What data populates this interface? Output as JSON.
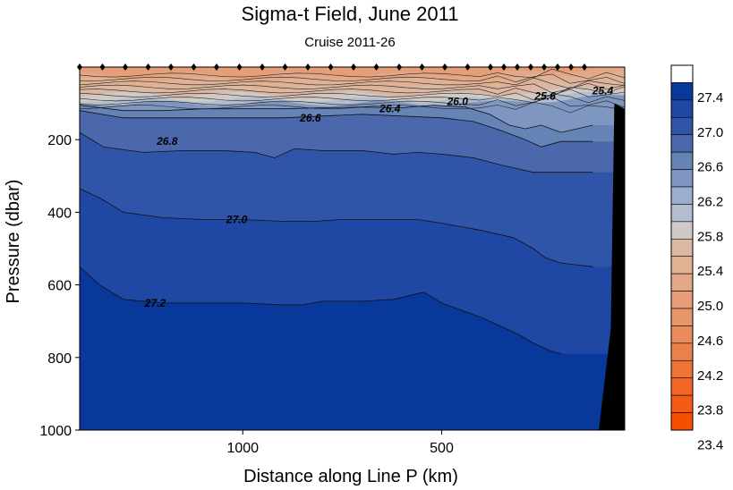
{
  "chart_data": {
    "type": "heatmap",
    "title": "Sigma-t Field,  June 2011",
    "subtitle": "Cruise 2011-26",
    "xlabel": "Distance along Line P  (km)",
    "ylabel": "Pressure  (dbar)",
    "x_ticks": [
      "1000",
      "500"
    ],
    "y_ticks": [
      "200",
      "400",
      "600",
      "800",
      "1000"
    ],
    "xlim": [
      1410,
      40
    ],
    "ylim": [
      0,
      1000
    ],
    "y_inverted": true,
    "colorbar": {
      "levels": [
        27.4,
        27.0,
        26.6,
        26.2,
        25.8,
        25.4,
        25.0,
        24.6,
        24.2,
        23.8,
        23.4
      ],
      "level_labels": [
        "27.4",
        "27.0",
        "26.6",
        "26.2",
        "25.8",
        "25.4",
        "25.0",
        "24.6",
        "24.2",
        "23.8",
        "23.4"
      ],
      "colors": [
        "#ffffff",
        "#08389a",
        "#1e48a4",
        "#3055a8",
        "#4b68ad",
        "#6683b6",
        "#7f97c0",
        "#9aaecf",
        "#b2bdcf",
        "#cfcac6",
        "#dbb8a3",
        "#e0b294",
        "#e3a887",
        "#e59e78",
        "#e7956a",
        "#ea8b5c",
        "#ec804b",
        "#ef7438",
        "#f26626",
        "#f45a12",
        "#f84e00"
      ]
    },
    "contour_labels": [
      {
        "text": "27.2",
        "x": 1220,
        "pressure": 650
      },
      {
        "text": "27.0",
        "x": 1015,
        "pressure": 420
      },
      {
        "text": "26.8",
        "x": 1190,
        "pressure": 205
      },
      {
        "text": "26.6",
        "x": 830,
        "pressure": 140
      },
      {
        "text": "26.4",
        "x": 630,
        "pressure": 115
      },
      {
        "text": "26.0",
        "x": 460,
        "pressure": 95
      },
      {
        "text": "25.6",
        "x": 240,
        "pressure": 80
      },
      {
        "text": "25.4",
        "x": 95,
        "pressure": 65
      }
    ],
    "isopycnals": [
      {
        "level": 27.2,
        "points": [
          [
            1410,
            550
          ],
          [
            1360,
            600
          ],
          [
            1300,
            640
          ],
          [
            1200,
            650
          ],
          [
            1100,
            650
          ],
          [
            1000,
            650
          ],
          [
            900,
            655
          ],
          [
            850,
            655
          ],
          [
            800,
            645
          ],
          [
            700,
            645
          ],
          [
            620,
            640
          ],
          [
            545,
            620
          ],
          [
            500,
            650
          ],
          [
            400,
            690
          ],
          [
            310,
            735
          ],
          [
            270,
            760
          ],
          [
            230,
            780
          ],
          [
            200,
            790
          ]
        ]
      },
      {
        "level": 27.0,
        "points": [
          [
            1410,
            335
          ],
          [
            1360,
            360
          ],
          [
            1300,
            400
          ],
          [
            1200,
            415
          ],
          [
            1100,
            420
          ],
          [
            1000,
            420
          ],
          [
            900,
            425
          ],
          [
            820,
            425
          ],
          [
            750,
            420
          ],
          [
            650,
            420
          ],
          [
            560,
            420
          ],
          [
            500,
            430
          ],
          [
            400,
            450
          ],
          [
            320,
            470
          ],
          [
            270,
            500
          ],
          [
            240,
            525
          ],
          [
            200,
            540
          ],
          [
            120,
            550
          ]
        ]
      },
      {
        "level": 26.8,
        "points": [
          [
            1410,
            180
          ],
          [
            1350,
            220
          ],
          [
            1250,
            235
          ],
          [
            1150,
            230
          ],
          [
            1050,
            230
          ],
          [
            970,
            235
          ],
          [
            920,
            250
          ],
          [
            870,
            225
          ],
          [
            800,
            230
          ],
          [
            700,
            230
          ],
          [
            620,
            240
          ],
          [
            560,
            235
          ],
          [
            500,
            240
          ],
          [
            420,
            250
          ],
          [
            350,
            270
          ],
          [
            270,
            290
          ],
          [
            200,
            290
          ],
          [
            120,
            290
          ]
        ]
      },
      {
        "level": 26.6,
        "points": [
          [
            1410,
            120
          ],
          [
            1300,
            140
          ],
          [
            1200,
            140
          ],
          [
            1100,
            140
          ],
          [
            1000,
            140
          ],
          [
            900,
            140
          ],
          [
            800,
            135
          ],
          [
            700,
            130
          ],
          [
            600,
            135
          ],
          [
            500,
            140
          ],
          [
            420,
            150
          ],
          [
            350,
            175
          ],
          [
            290,
            200
          ],
          [
            250,
            220
          ],
          [
            200,
            205
          ],
          [
            120,
            205
          ]
        ]
      },
      {
        "level": 26.4,
        "points": [
          [
            1410,
            105
          ],
          [
            1300,
            120
          ],
          [
            1200,
            120
          ],
          [
            1100,
            115
          ],
          [
            1000,
            115
          ],
          [
            900,
            115
          ],
          [
            800,
            112
          ],
          [
            700,
            110
          ],
          [
            600,
            112
          ],
          [
            520,
            105
          ],
          [
            440,
            110
          ],
          [
            380,
            130
          ],
          [
            330,
            160
          ],
          [
            290,
            170
          ],
          [
            250,
            160
          ],
          [
            200,
            180
          ],
          [
            120,
            160
          ]
        ]
      }
    ],
    "station_markers": 26
  }
}
